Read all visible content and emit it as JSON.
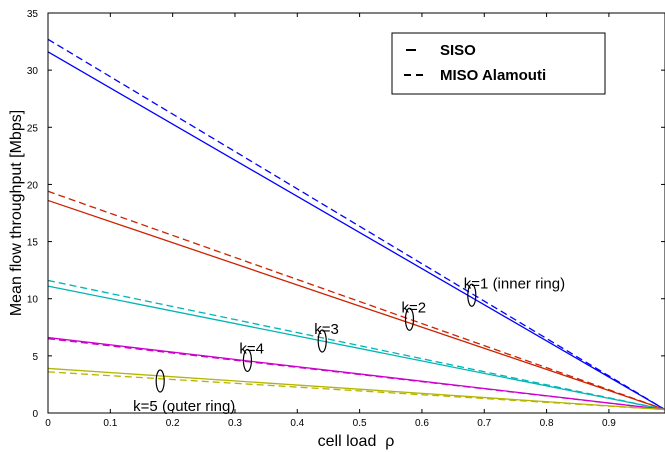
{
  "chart_data": {
    "type": "line",
    "title": "",
    "xlabel": "cell load  ρ",
    "ylabel": "Mean flow throughput [Mbps]",
    "xlim": [
      0,
      0.99
    ],
    "ylim": [
      0,
      35
    ],
    "xticks": [
      0,
      0.1,
      0.2,
      0.3,
      0.4,
      0.5,
      0.6,
      0.7,
      0.8,
      0.9
    ],
    "yticks": [
      0,
      5,
      10,
      15,
      20,
      25,
      30,
      35
    ],
    "grid": false,
    "legend": {
      "placement": "top-right",
      "entries": [
        {
          "label": "SISO",
          "style": "solid"
        },
        {
          "label": "MISO Alamouti",
          "style": "dashed"
        }
      ]
    },
    "series": [
      {
        "ring": "k=1",
        "style": "solid",
        "color": "#0000ff",
        "x": [
          0,
          0.99
        ],
        "y": [
          31.6,
          0.3
        ]
      },
      {
        "ring": "k=1",
        "style": "dashed",
        "color": "#0000ff",
        "x": [
          0,
          0.99
        ],
        "y": [
          32.7,
          0.3
        ]
      },
      {
        "ring": "k=2",
        "style": "solid",
        "color": "#cc2200",
        "x": [
          0,
          0.99
        ],
        "y": [
          18.6,
          0.3
        ]
      },
      {
        "ring": "k=2",
        "style": "dashed",
        "color": "#cc2200",
        "x": [
          0,
          0.99
        ],
        "y": [
          19.4,
          0.3
        ]
      },
      {
        "ring": "k=3",
        "style": "solid",
        "color": "#00b5b5",
        "x": [
          0,
          0.99
        ],
        "y": [
          11.1,
          0.3
        ]
      },
      {
        "ring": "k=3",
        "style": "dashed",
        "color": "#00b5b5",
        "x": [
          0,
          0.99
        ],
        "y": [
          11.6,
          0.3
        ]
      },
      {
        "ring": "k=4",
        "style": "solid",
        "color": "#cc00cc",
        "x": [
          0,
          0.99
        ],
        "y": [
          6.6,
          0.3
        ]
      },
      {
        "ring": "k=4",
        "style": "dashed",
        "color": "#cc00cc",
        "x": [
          0,
          0.99
        ],
        "y": [
          6.5,
          0.3
        ]
      },
      {
        "ring": "k=5",
        "style": "solid",
        "color": "#b5b500",
        "x": [
          0,
          0.99
        ],
        "y": [
          3.9,
          0.3
        ]
      },
      {
        "ring": "k=5",
        "style": "dashed",
        "color": "#b5b500",
        "x": [
          0,
          0.99
        ],
        "y": [
          3.6,
          0.3
        ]
      }
    ],
    "annotations": [
      {
        "text": "k=1 (inner ring)",
        "x": 0.68,
        "y": 10.3
      },
      {
        "text": "k=2",
        "x": 0.58,
        "y": 8.2
      },
      {
        "text": "k=3",
        "x": 0.44,
        "y": 6.3
      },
      {
        "text": "k=4",
        "x": 0.32,
        "y": 4.6
      },
      {
        "text": "k=5 (outer ring)",
        "x": 0.18,
        "y": 2.8
      }
    ]
  }
}
